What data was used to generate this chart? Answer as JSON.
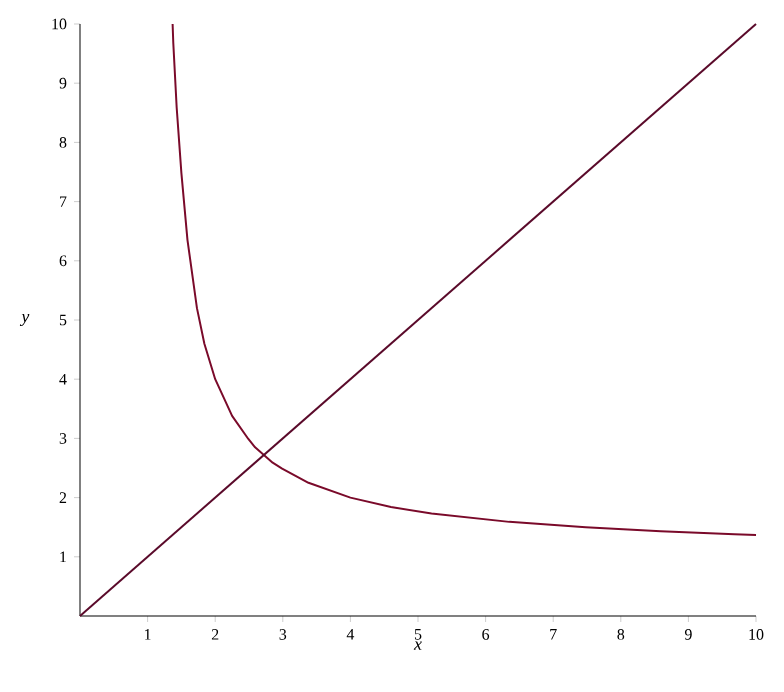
{
  "chart_data": {
    "type": "line",
    "xlabel": "x",
    "ylabel": "y",
    "xlim": [
      0,
      10
    ],
    "ylim": [
      0,
      10
    ],
    "xticks": [
      1,
      2,
      3,
      4,
      5,
      6,
      7,
      8,
      9,
      10
    ],
    "yticks": [
      1,
      2,
      3,
      4,
      5,
      6,
      7,
      8,
      9,
      10
    ],
    "grid": false,
    "marker": "none",
    "line_style": "solid",
    "series": [
      {
        "color": "#7a0a2a",
        "x": [
          1.37,
          1.38,
          1.43,
          1.5,
          1.59,
          1.73,
          1.84,
          2,
          2.25,
          2.49,
          2.59,
          2.72,
          2.85,
          2.99,
          3.38,
          4,
          4.6,
          5.2,
          6.35,
          7.48,
          8.59,
          9.68,
          10
        ],
        "values": [
          10,
          9.68,
          8.59,
          7.48,
          6.35,
          5.2,
          4.6,
          4,
          3.38,
          2.99,
          2.85,
          2.72,
          2.59,
          2.49,
          2.25,
          2,
          1.84,
          1.73,
          1.59,
          1.5,
          1.43,
          1.38,
          1.37
        ]
      },
      {
        "color": "#5a0a2a",
        "x": [
          0,
          10
        ],
        "values": [
          0,
          10
        ]
      }
    ]
  }
}
